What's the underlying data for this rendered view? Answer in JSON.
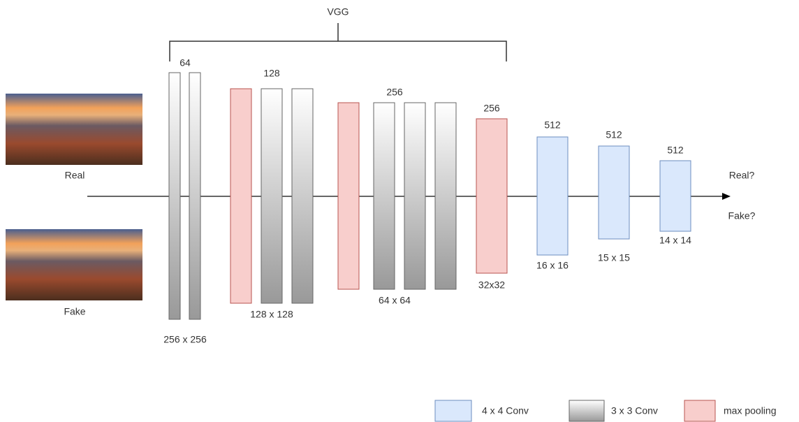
{
  "title": "VGG",
  "inputs": [
    {
      "label": "Real"
    },
    {
      "label": "Fake"
    }
  ],
  "blocks": [
    {
      "channels": 64,
      "size": "256 x 256"
    },
    {
      "channels": 128,
      "size": "128 x 128"
    },
    {
      "channels": 256,
      "size": "64 x 64"
    },
    {
      "channels": 256,
      "size": "32x32"
    },
    {
      "channels": 512,
      "size": "16 x 16"
    },
    {
      "channels": 512,
      "size": "15 x 15"
    },
    {
      "channels": 512,
      "size": "14 x 14"
    }
  ],
  "outputs": [
    "Real?",
    "Fake?"
  ],
  "legend": [
    "4 x 4 Conv",
    "3 x 3 Conv",
    "max pooling"
  ]
}
